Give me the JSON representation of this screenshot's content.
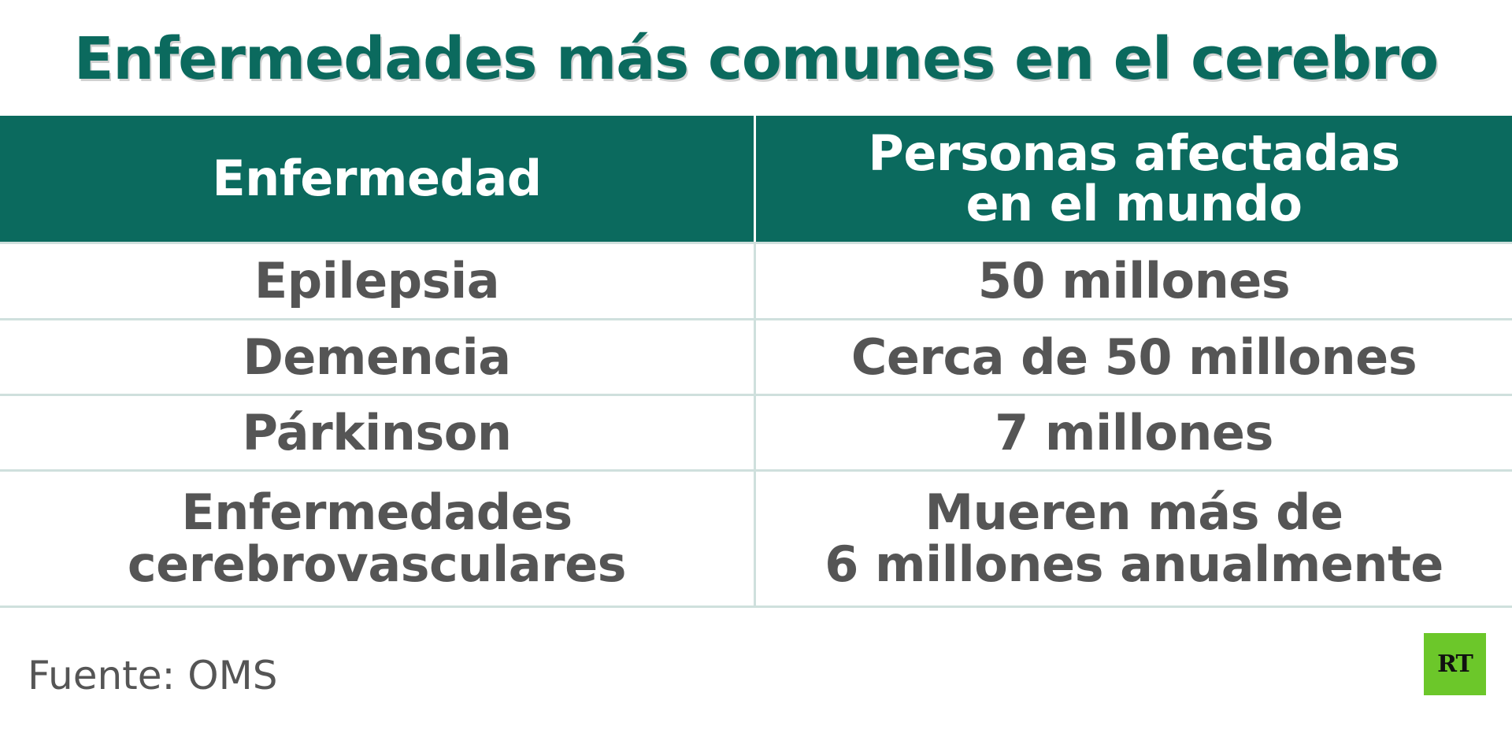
{
  "title": "Enfermedades más comunes en el cerebro",
  "table": {
    "headers": [
      "Enfermedad",
      "Personas afectadas\nen el mundo"
    ],
    "rows": [
      [
        "Epilepsia",
        "50 millones"
      ],
      [
        "Demencia",
        "Cerca de 50 millones"
      ],
      [
        "Párkinson",
        "7 millones"
      ],
      [
        "Enfermedades\ncerebrovasculares",
        "Mueren más de\n6 millones anualmente"
      ]
    ]
  },
  "source": "Fuente: OMS",
  "logo": {
    "text": "RT",
    "color": "#6cc72a"
  },
  "colors": {
    "accent": "#0b6a5e",
    "text": "#555555",
    "grid": "#cfe0dd"
  }
}
